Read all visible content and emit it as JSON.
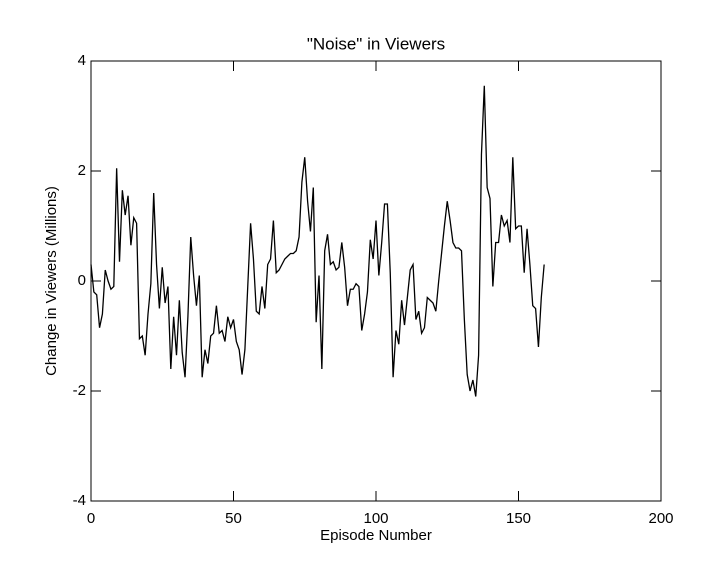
{
  "chart_data": {
    "type": "line",
    "title": "\"Noise\" in Viewers",
    "x_label": "Episode Number",
    "y_label": "Change in Viewers (Millions)",
    "xlim": [
      0,
      200
    ],
    "xticks": [
      0,
      50,
      100,
      150,
      200
    ],
    "ylim": [
      -4,
      4
    ],
    "yticks": [
      -4,
      -2,
      0,
      2,
      4
    ],
    "color": "#000000",
    "x": [
      0,
      1,
      2,
      3,
      4,
      5,
      6,
      7,
      8,
      9,
      10,
      11,
      12,
      13,
      14,
      15,
      16,
      17,
      18,
      19,
      20,
      21,
      22,
      23,
      24,
      25,
      26,
      27,
      28,
      29,
      30,
      31,
      32,
      33,
      34,
      35,
      36,
      37,
      38,
      39,
      40,
      41,
      42,
      43,
      44,
      45,
      46,
      47,
      48,
      49,
      50,
      51,
      52,
      53,
      54,
      55,
      56,
      57,
      58,
      59,
      60,
      61,
      62,
      63,
      64,
      65,
      66,
      67,
      68,
      69,
      70,
      71,
      72,
      73,
      74,
      75,
      76,
      77,
      78,
      79,
      80,
      81,
      82,
      83,
      84,
      85,
      86,
      87,
      88,
      89,
      90,
      91,
      92,
      93,
      94,
      95,
      96,
      97,
      98,
      99,
      100,
      101,
      102,
      103,
      104,
      105,
      106,
      107,
      108,
      109,
      110,
      111,
      112,
      113,
      114,
      115,
      116,
      117,
      118,
      119,
      120,
      121,
      122,
      123,
      124,
      125,
      126,
      127,
      128,
      129,
      130,
      131,
      132,
      133,
      134,
      135,
      136,
      137,
      138,
      139,
      140,
      141,
      142,
      143,
      144,
      145,
      146,
      147,
      148,
      149,
      150,
      151,
      152,
      153,
      154,
      155,
      156,
      157,
      158,
      159
    ],
    "values": [
      0.3,
      -0.2,
      -0.25,
      -0.85,
      -0.6,
      0.2,
      0.0,
      -0.15,
      -0.1,
      2.05,
      0.35,
      1.65,
      1.2,
      1.55,
      0.65,
      1.15,
      1.05,
      -1.05,
      -1.0,
      -1.35,
      -0.6,
      -0.05,
      1.6,
      0.3,
      -0.5,
      0.25,
      -0.4,
      -0.1,
      -1.6,
      -0.65,
      -1.35,
      -0.35,
      -1.3,
      -1.75,
      -0.65,
      0.8,
      0.1,
      -0.45,
      0.1,
      -1.75,
      -1.25,
      -1.5,
      -1.0,
      -0.95,
      -0.45,
      -0.95,
      -0.9,
      -1.1,
      -0.65,
      -0.85,
      -0.7,
      -1.1,
      -1.25,
      -1.7,
      -1.25,
      -0.1,
      1.05,
      0.4,
      -0.55,
      -0.6,
      -0.1,
      -0.5,
      0.3,
      0.4,
      1.1,
      0.15,
      0.2,
      0.3,
      0.4,
      0.45,
      0.5,
      0.5,
      0.55,
      0.8,
      1.8,
      2.25,
      1.45,
      0.9,
      1.7,
      -0.75,
      0.1,
      -1.6,
      0.55,
      0.85,
      0.3,
      0.35,
      0.2,
      0.25,
      0.7,
      0.25,
      -0.45,
      -0.15,
      -0.15,
      -0.05,
      -0.1,
      -0.9,
      -0.6,
      -0.2,
      0.75,
      0.4,
      1.1,
      0.1,
      0.7,
      1.4,
      1.4,
      0.15,
      -1.75,
      -0.9,
      -1.15,
      -0.35,
      -0.8,
      -0.3,
      0.2,
      0.3,
      -0.7,
      -0.55,
      -0.95,
      -0.85,
      -0.3,
      -0.35,
      -0.4,
      -0.55,
      0.0,
      0.5,
      1.0,
      1.45,
      1.1,
      0.7,
      0.6,
      0.6,
      0.55,
      -0.7,
      -1.7,
      -2.0,
      -1.8,
      -2.1,
      -1.35,
      2.3,
      3.55,
      1.7,
      1.5,
      -0.1,
      0.7,
      0.7,
      1.2,
      1.0,
      1.1,
      0.7,
      2.25,
      0.95,
      1.0,
      1.0,
      0.15,
      0.95,
      0.3,
      -0.45,
      -0.5,
      -1.2,
      -0.3,
      0.3
    ]
  }
}
